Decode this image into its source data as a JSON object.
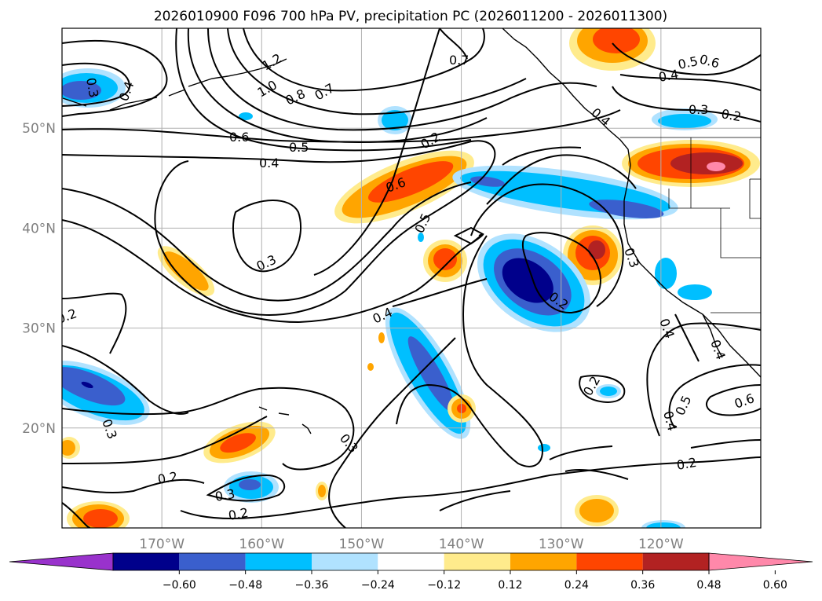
{
  "title": "2026010900 F096 700 hPa PV, precipitation PC (2026011200 - 2026011300)",
  "map": {
    "lon_range": [
      -180,
      -110
    ],
    "lat_range": [
      10,
      60
    ],
    "lon_ticks": [
      {
        "value": -170,
        "label": "170°W"
      },
      {
        "value": -160,
        "label": "160°W"
      },
      {
        "value": -150,
        "label": "150°W"
      },
      {
        "value": -140,
        "label": "140°W"
      },
      {
        "value": -130,
        "label": "130°W"
      },
      {
        "value": -120,
        "label": "120°W"
      }
    ],
    "lat_ticks": [
      {
        "value": 20,
        "label": "20°N"
      },
      {
        "value": 30,
        "label": "30°N"
      },
      {
        "value": 40,
        "label": "40°N"
      },
      {
        "value": 50,
        "label": "50°N"
      }
    ],
    "grid": true
  },
  "colorbar": {
    "levels": [
      "-0.60",
      "-0.48",
      "-0.36",
      "-0.24",
      "-0.12",
      "0.12",
      "0.24",
      "0.36",
      "0.48",
      "0.60"
    ],
    "colors": [
      "#9932cc",
      "#00008b",
      "#3a5fcd",
      "#00bfff",
      "#b0e2ff",
      "#ffffff",
      "#ffeb8c",
      "#ffa500",
      "#ff4500",
      "#b22222",
      "#ff88aa"
    ]
  },
  "contour_labels": [
    "0.7",
    "0.6",
    "0.5",
    "0.4",
    "0.3",
    "1.2",
    "1.0",
    "0.8",
    "0.7",
    "0.6",
    "0.5",
    "0.4",
    "0.4",
    "0.3",
    "0.3",
    "0.2",
    "0.3",
    "0.6",
    "0.5",
    "0.4",
    "0.4",
    "0.2",
    "0.3",
    "0.4",
    "0.4",
    "0.2",
    "0.5",
    "0.6",
    "0.4",
    "0.2",
    "0.3",
    "0.3",
    "0.2",
    "0.2",
    "0.2",
    "0.2"
  ]
}
